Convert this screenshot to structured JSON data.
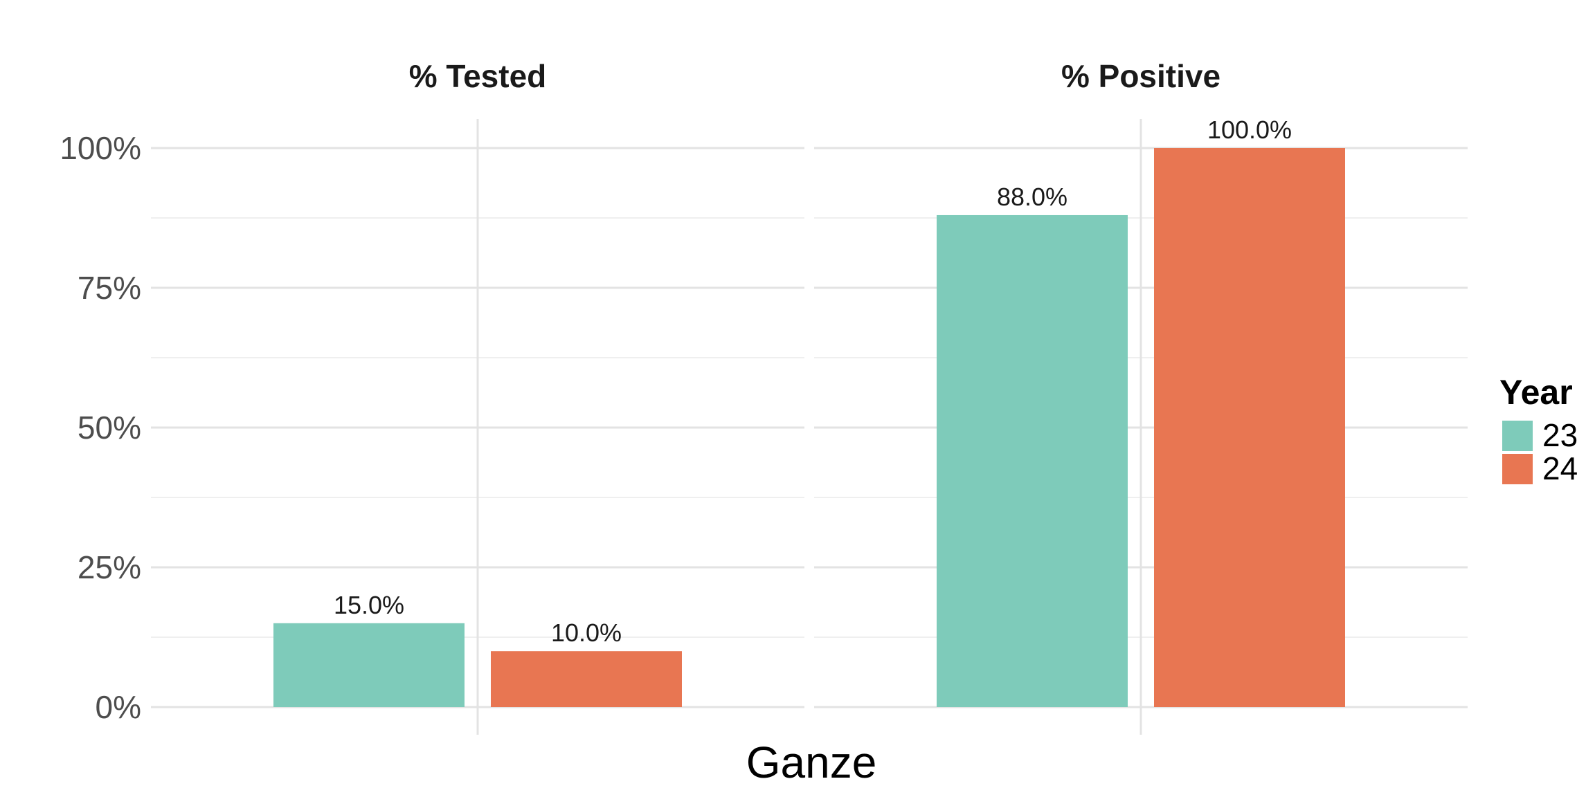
{
  "chart_data": {
    "type": "bar",
    "facets": [
      {
        "title": "% Tested",
        "category": "Ganze",
        "series": [
          {
            "name": "23",
            "value": 15.0,
            "label": "15.0%"
          },
          {
            "name": "24",
            "value": 10.0,
            "label": "10.0%"
          }
        ]
      },
      {
        "title": "% Positive",
        "category": "Ganze",
        "series": [
          {
            "name": "23",
            "value": 88.0,
            "label": "88.0%"
          },
          {
            "name": "24",
            "value": 100.0,
            "label": "100.0%"
          }
        ]
      }
    ],
    "xlabel": "Ganze",
    "ylabel": "",
    "ylim": [
      0,
      100
    ],
    "yticks": [
      0,
      25,
      50,
      75,
      100
    ],
    "ytick_labels": [
      "0%",
      "25%",
      "50%",
      "75%",
      "100%"
    ],
    "grid": true,
    "legend": {
      "title": "Year",
      "position": "right",
      "entries": [
        {
          "name": "23",
          "color": "#7ecbba"
        },
        {
          "name": "24",
          "color": "#e87652"
        }
      ]
    }
  }
}
